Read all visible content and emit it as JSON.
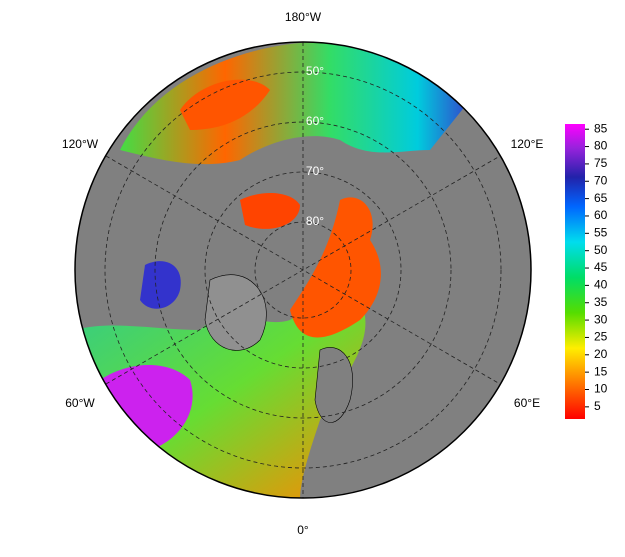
{
  "map": {
    "longitude_labels": [
      "180°W",
      "120°W",
      "120°E",
      "60°W",
      "60°E",
      "0°"
    ],
    "latitude_labels": [
      "50°",
      "60°",
      "70°",
      "80°"
    ]
  },
  "colorbar": {
    "lim": [
      1.5,
      86.5
    ],
    "ticks": [
      5,
      10,
      15,
      20,
      25,
      30,
      35,
      40,
      45,
      50,
      55,
      60,
      65,
      70,
      75,
      80,
      85
    ]
  }
}
